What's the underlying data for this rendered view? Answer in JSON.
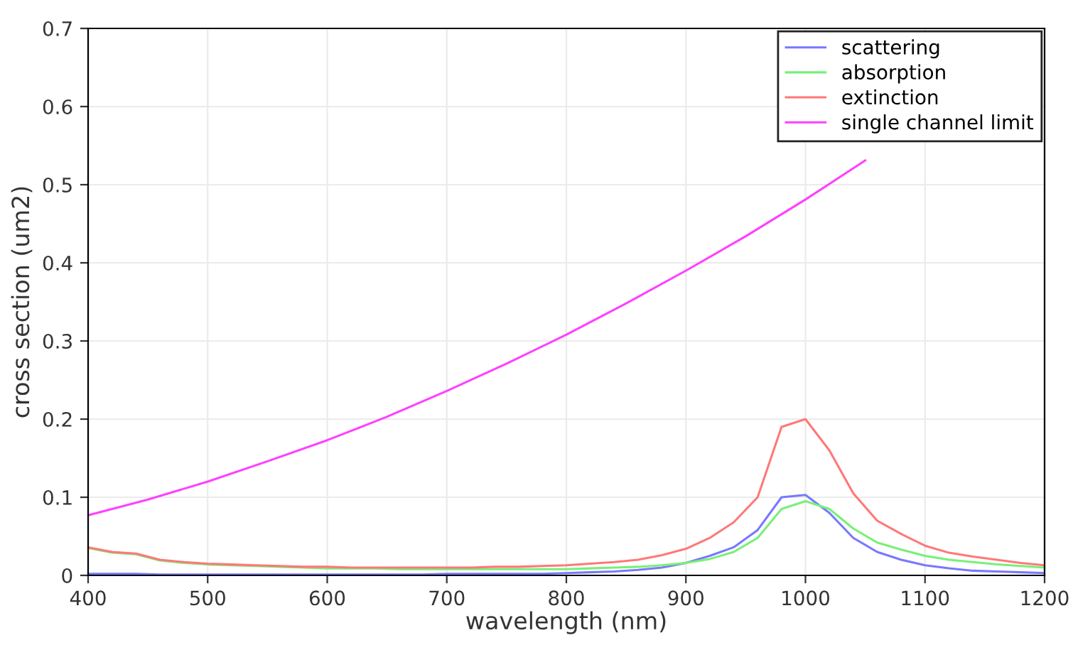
{
  "chart_data": {
    "type": "line",
    "xlabel": "wavelength (nm)",
    "ylabel": "cross section (um2)",
    "xlim": [
      400,
      1200
    ],
    "xticks": [
      400,
      500,
      600,
      700,
      800,
      900,
      1000,
      1100,
      1200
    ],
    "ylim": [
      0,
      0.7
    ],
    "yticks": [
      0,
      0.1,
      0.2,
      0.3,
      0.4,
      0.5,
      0.6,
      0.7
    ],
    "grid": true,
    "legend": "top right",
    "marker": "none",
    "line_style": "solid",
    "x": [
      400,
      420,
      440,
      460,
      480,
      500,
      520,
      540,
      560,
      580,
      600,
      620,
      640,
      660,
      680,
      700,
      720,
      740,
      760,
      780,
      800,
      820,
      840,
      860,
      880,
      900,
      920,
      940,
      960,
      980,
      1000,
      1020,
      1040,
      1060,
      1080,
      1100,
      1120,
      1140,
      1160,
      1180,
      1200
    ],
    "series": [
      {
        "name": "scattering",
        "color": "#7878ff",
        "values": [
          0.002,
          0.002,
          0.002,
          0.001,
          0.001,
          0.001,
          0.001,
          0.001,
          0.001,
          0.001,
          0.001,
          0.001,
          0.001,
          0.001,
          0.001,
          0.002,
          0.002,
          0.002,
          0.002,
          0.002,
          0.003,
          0.004,
          0.005,
          0.007,
          0.01,
          0.016,
          0.025,
          0.036,
          0.058,
          0.1,
          0.103,
          0.08,
          0.048,
          0.03,
          0.02,
          0.013,
          0.009,
          0.006,
          0.005,
          0.004,
          0.003
        ]
      },
      {
        "name": "absorption",
        "color": "#78f078",
        "values": [
          0.035,
          0.029,
          0.027,
          0.019,
          0.016,
          0.014,
          0.013,
          0.012,
          0.011,
          0.01,
          0.009,
          0.009,
          0.009,
          0.008,
          0.008,
          0.008,
          0.008,
          0.008,
          0.008,
          0.008,
          0.008,
          0.009,
          0.01,
          0.011,
          0.013,
          0.016,
          0.021,
          0.03,
          0.048,
          0.085,
          0.095,
          0.085,
          0.06,
          0.042,
          0.033,
          0.025,
          0.02,
          0.017,
          0.014,
          0.012,
          0.01
        ]
      },
      {
        "name": "extinction",
        "color": "#ff7878",
        "values": [
          0.036,
          0.03,
          0.028,
          0.02,
          0.017,
          0.015,
          0.014,
          0.013,
          0.012,
          0.011,
          0.011,
          0.01,
          0.01,
          0.01,
          0.01,
          0.01,
          0.01,
          0.011,
          0.011,
          0.012,
          0.013,
          0.015,
          0.017,
          0.02,
          0.026,
          0.034,
          0.048,
          0.068,
          0.1,
          0.19,
          0.2,
          0.16,
          0.105,
          0.07,
          0.053,
          0.038,
          0.029,
          0.024,
          0.02,
          0.016,
          0.013
        ]
      },
      {
        "name": "single channel limit",
        "color": "#ff40ff",
        "x": [
          400,
          450,
          500,
          550,
          600,
          650,
          700,
          750,
          800,
          850,
          900,
          950,
          1000,
          1050
        ],
        "values": [
          0.077,
          0.097,
          0.12,
          0.146,
          0.173,
          0.203,
          0.236,
          0.271,
          0.308,
          0.348,
          0.39,
          0.434,
          0.481,
          0.531
        ]
      }
    ]
  }
}
